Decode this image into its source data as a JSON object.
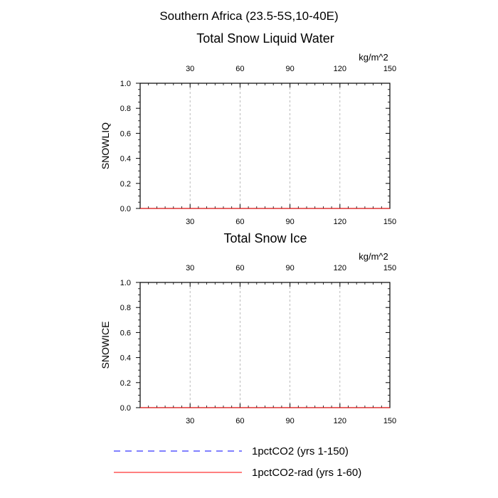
{
  "figure": {
    "main_title": "Southern Africa (23.5-5S,10-40E)"
  },
  "chart_data": [
    {
      "type": "line",
      "title": "Total Snow Liquid Water",
      "ylabel": "SNOWLIQ",
      "units": "kg/m^2",
      "xlim": [
        0,
        150
      ],
      "ylim": [
        0,
        1.0
      ],
      "x_ticks": [
        30,
        60,
        90,
        120,
        150
      ],
      "y_ticks": [
        "0.0",
        "0.2",
        "0.4",
        "0.6",
        "0.8",
        "1.0"
      ],
      "grid": "vertical dashed at x ticks",
      "series": [
        {
          "name": "1pctCO2 (yrs 1-150)",
          "x": [
            0,
            150
          ],
          "values": [
            0,
            0
          ],
          "color": "#0000ff",
          "style": "dashed"
        },
        {
          "name": "1pctCO2-rad (yrs 1-60)",
          "x": [
            0,
            150
          ],
          "values": [
            0,
            0
          ],
          "color": "#ff0000",
          "style": "solid"
        }
      ]
    },
    {
      "type": "line",
      "title": "Total Snow Ice",
      "ylabel": "SNOWICE",
      "units": "kg/m^2",
      "xlim": [
        0,
        150
      ],
      "ylim": [
        0,
        1.0
      ],
      "x_ticks": [
        30,
        60,
        90,
        120,
        150
      ],
      "y_ticks": [
        "0.0",
        "0.2",
        "0.4",
        "0.6",
        "0.8",
        "1.0"
      ],
      "grid": "vertical dashed at x ticks",
      "series": [
        {
          "name": "1pctCO2 (yrs 1-150)",
          "x": [
            0,
            150
          ],
          "values": [
            0,
            0
          ],
          "color": "#0000ff",
          "style": "dashed"
        },
        {
          "name": "1pctCO2-rad (yrs 1-60)",
          "x": [
            0,
            150
          ],
          "values": [
            0,
            0
          ],
          "color": "#ff0000",
          "style": "solid"
        }
      ]
    }
  ],
  "legend": {
    "placement": "bottom",
    "entries": [
      {
        "label": "1pctCO2 (yrs 1-150)",
        "color": "#0000ff",
        "style": "dashed"
      },
      {
        "label": "1pctCO2-rad (yrs 1-60)",
        "color": "#ff0000",
        "style": "solid"
      }
    ]
  },
  "colors": {
    "top_axis_labels": "#0000ff",
    "bottom_axis_labels": "#ff0000",
    "grid": "#aaaaaa"
  }
}
